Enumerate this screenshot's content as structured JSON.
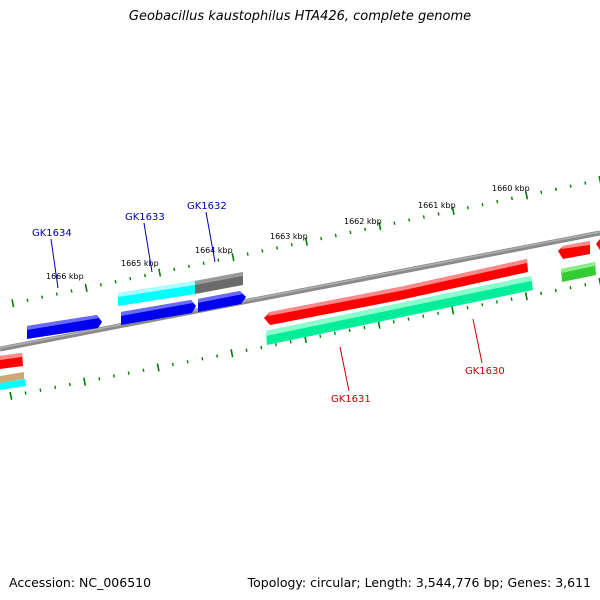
{
  "title": "Geobacillus kaustophilus HTA426, complete genome",
  "accession": "Accession: NC_006510",
  "summary": "Topology: circular; Length: 3,544,776 bp; Genes: 3,611",
  "colors": {
    "axis": "#808080",
    "ticks": "#008000",
    "label_forward": "#0000aa",
    "label_reverse": "#cc0000",
    "blue": "#0000ee",
    "cyan": "#00ffff",
    "gray": "#707070",
    "red": "#ff0000",
    "teal": "#00ee99",
    "green": "#33cc33"
  },
  "kbp_labels": [
    "1660 kbp",
    "1661 kbp",
    "1662 kbp",
    "1663 kbp",
    "1664 kbp",
    "1665 kbp",
    "1666 kbp"
  ],
  "gene_labels": [
    "GK1634",
    "GK1633",
    "GK1632",
    "GK1631",
    "GK1630"
  ]
}
